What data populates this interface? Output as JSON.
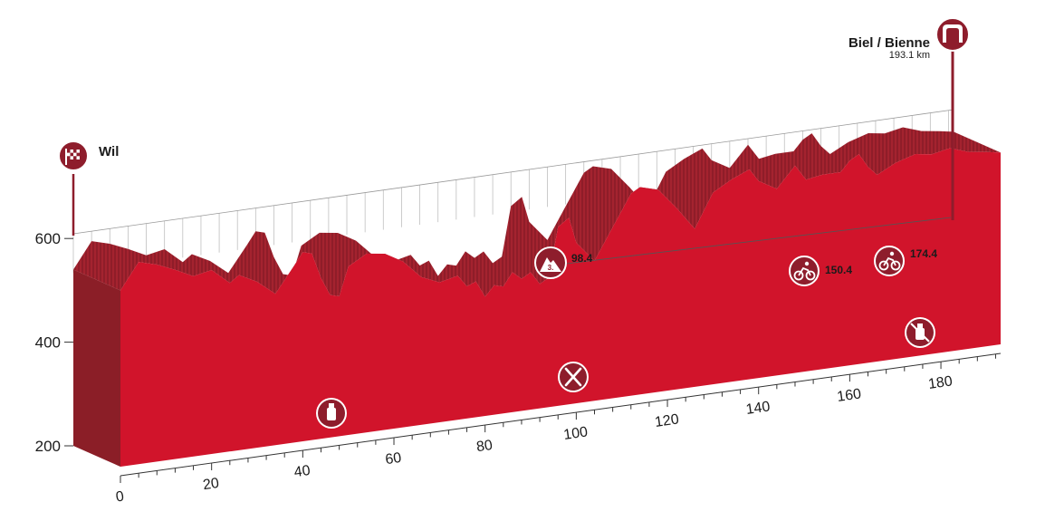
{
  "chart_data": {
    "type": "area",
    "title": "",
    "xlabel": "",
    "ylabel": "",
    "xlim": [
      0,
      193.1
    ],
    "ylim": [
      200,
      600
    ],
    "x_ticks": [
      "0",
      "20",
      "40",
      "60",
      "80",
      "100",
      "120",
      "140",
      "160",
      "180"
    ],
    "y_ticks": [
      "200",
      "400",
      "600"
    ],
    "start": {
      "name": "Wil",
      "km": 0
    },
    "finish": {
      "name": "Biel / Bienne",
      "distance": "193.1 km",
      "km": 193.1
    },
    "climb": {
      "category": "3.",
      "km": 98.4,
      "label": "98.4"
    },
    "sprints": [
      {
        "km": 150.4,
        "label": "150.4"
      },
      {
        "km": 174.4,
        "label": "174.4"
      }
    ],
    "feed_zone_km": 100,
    "drink_zone_km": 47,
    "no_drink_zone_km": 182,
    "colors": {
      "fill": "#d1142b",
      "dark": "#8b1e27",
      "slope": "#a81b2c",
      "finish": "#8e1d2c"
    },
    "series": [
      {
        "x": [
          0,
          4,
          8,
          12,
          16,
          20,
          24,
          26,
          30,
          34,
          38,
          40,
          42,
          44,
          46,
          48,
          50,
          54,
          58,
          62,
          66,
          70,
          74,
          76,
          78,
          80,
          82,
          84,
          86,
          88,
          90,
          92,
          94,
          96,
          98.4,
          100,
          104,
          108,
          110,
          112,
          114,
          118,
          122,
          126,
          130,
          134,
          138,
          140,
          144,
          148,
          150.4,
          154,
          158,
          160,
          162,
          164,
          166,
          170,
          174.4,
          178,
          182,
          186,
          190,
          193.1
        ],
        "values": [
          540,
          590,
          580,
          565,
          548,
          555,
          525,
          538,
          520,
          492,
          540,
          565,
          560,
          510,
          475,
          470,
          525,
          545,
          540,
          520,
          485,
          470,
          478,
          455,
          462,
          430,
          450,
          445,
          470,
          455,
          465,
          440,
          450,
          545,
          560,
          510,
          470,
          530,
          560,
          590,
          600,
          590,
          550,
          505,
          570,
          590,
          605,
          580,
          560,
          600,
          570,
          575,
          575,
          595,
          605,
          578,
          560,
          578,
          590,
          585,
          592,
          580,
          575,
          570
        ]
      }
    ]
  }
}
